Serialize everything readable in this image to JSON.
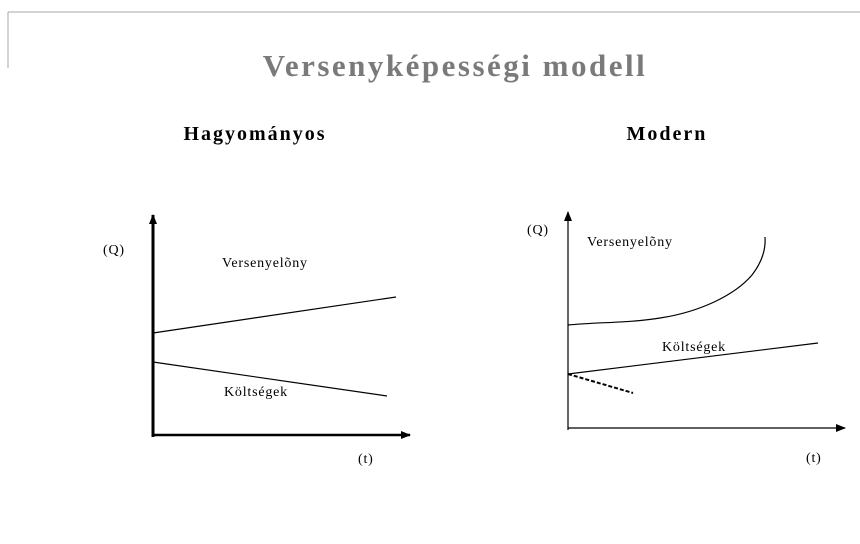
{
  "title": "Versenyképességi modell",
  "panels": [
    {
      "heading": "Hagyományos",
      "y_label": "(Q)",
      "x_label": "(t)",
      "upper_label": "Versenyelõny",
      "lower_label": "Költségek"
    },
    {
      "heading": "Modern",
      "y_label": "(Q)",
      "x_label": "(t)",
      "upper_label": "Versenyelõny",
      "lower_label": "Költségek"
    }
  ]
}
